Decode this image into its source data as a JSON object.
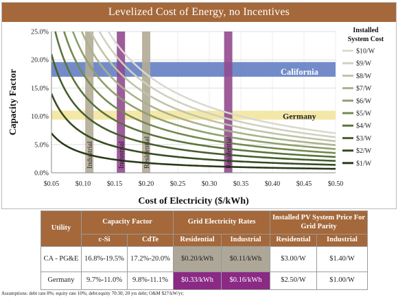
{
  "chart_data": {
    "type": "line",
    "title": "Levelized Cost of Energy, no Incentives",
    "xlabel": "Cost of Electricity ($/kWh)",
    "ylabel": "Capacity Factor",
    "xlim": [
      0.05,
      0.5
    ],
    "ylim": [
      0,
      25
    ],
    "x_ticks": [
      "$0.05",
      "$0.10",
      "$0.15",
      "$0.20",
      "$0.25",
      "$0.30",
      "$0.35",
      "$0.40",
      "$0.45",
      "$0.50"
    ],
    "x_tick_values": [
      0.05,
      0.1,
      0.15,
      0.2,
      0.25,
      0.3,
      0.35,
      0.4,
      0.45,
      0.5
    ],
    "y_ticks": [
      "0.0%",
      "5.0%",
      "10.0%",
      "15.0%",
      "20.0%",
      "25.0%"
    ],
    "y_tick_values": [
      0,
      5,
      10,
      15,
      20,
      25
    ],
    "legend_title": "Installed System Cost",
    "legend_position": "right",
    "series": [
      {
        "name": "$10/W",
        "k": 3.5,
        "color": "#d9d9d0"
      },
      {
        "name": "$9/W",
        "k": 3.15,
        "color": "#cfd1bf"
      },
      {
        "name": "$8/W",
        "k": 2.8,
        "color": "#bfc4a8"
      },
      {
        "name": "$7/W",
        "k": 2.45,
        "color": "#a8b38b"
      },
      {
        "name": "$6/W",
        "k": 2.1,
        "color": "#8ea06c"
      },
      {
        "name": "$5/W",
        "k": 1.75,
        "color": "#728a4f"
      },
      {
        "name": "$4/W",
        "k": 1.4,
        "color": "#5a733b"
      },
      {
        "name": "$3/W",
        "k": 1.05,
        "color": "#465e2c"
      },
      {
        "name": "$2/W",
        "k": 0.7,
        "color": "#364c21"
      },
      {
        "name": "$1/W",
        "k": 0.35,
        "color": "#283a18"
      }
    ],
    "bands": [
      {
        "label": "California",
        "y_min": 17.0,
        "y_max": 19.6,
        "color": "#5a78c0"
      },
      {
        "label": "Germany",
        "y_min": 9.4,
        "y_max": 11.0,
        "color": "#f3e7a3"
      }
    ],
    "vertical_bands": [
      {
        "label": "Industrial",
        "x": 0.11,
        "y_min": 0,
        "y_max": 25,
        "color": "#b3ab96"
      },
      {
        "label": "Industrial",
        "x": 0.16,
        "y_min": 0,
        "y_max": 25,
        "color": "#924a8f"
      },
      {
        "label": "Residential",
        "x": 0.2,
        "y_min": 0,
        "y_max": 25,
        "color": "#b3ab96"
      },
      {
        "label": "Residential",
        "x": 0.33,
        "y_min": 0,
        "y_max": 25,
        "color": "#924a8f"
      }
    ]
  },
  "table": {
    "header_utility": "Utility",
    "header_capacity_factor": "Capacity Factor",
    "header_grid_rates": "Grid Electricity Rates",
    "header_installed_price": "Installed PV System Price For Grid Parity",
    "sub_csi": "c-Si",
    "sub_cdte": "CdTe",
    "sub_residential": "Residential",
    "sub_industrial": "Industrial",
    "sub_installed_residential": "Residential",
    "sub_installed_industrial": "Industrial",
    "rows": [
      {
        "utility": "CA - PG&E",
        "csi": "16.8%-19.5%",
        "cdte": "17.2%-20.0%",
        "residential": "$0.20/kWh",
        "industrial": "$0.11/kWh",
        "installed_residential": "$3.00/W",
        "installed_industrial": "$1.40/W"
      },
      {
        "utility": "Germany",
        "csi": "9.7%-11.0%",
        "cdte": "9.8%-11.1%",
        "residential": "$0.33/kWh",
        "industrial": "$0.16/kWh",
        "installed_residential": "$2.50/W",
        "installed_industrial": "$1.00/W"
      }
    ]
  },
  "assumptions": "Assumptions: debt rate 8%; equity rate 10%; debt:equity 70:30; 20 yrs debt; O&M $27/kW/yr;"
}
